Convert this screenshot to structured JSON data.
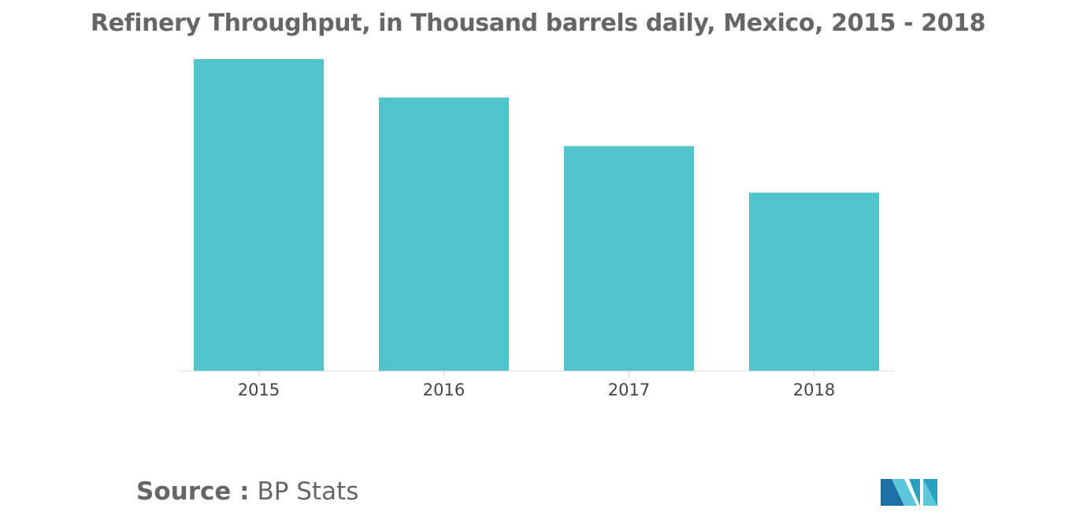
{
  "chart_data": {
    "type": "bar",
    "title": "Refinery Throughput, in Thousand barrels daily, Mexico, 2015 - 2018",
    "xlabel": "",
    "ylabel": "",
    "categories": [
      "2015",
      "2016",
      "2017",
      "2018"
    ],
    "values": [
      1000,
      877,
      721,
      572
    ],
    "ylim": [
      0,
      1000
    ],
    "grid": false,
    "legend": "none",
    "bar_color": "#51C3CA",
    "value_axis_shown": false
  },
  "source": {
    "label": "Source :",
    "text": "BP Stats"
  },
  "logo": {
    "icon": "mordor-intelligence-logo-icon",
    "colors": [
      "#1E6FA5",
      "#5BC7D9",
      "#2A9FC1"
    ]
  }
}
